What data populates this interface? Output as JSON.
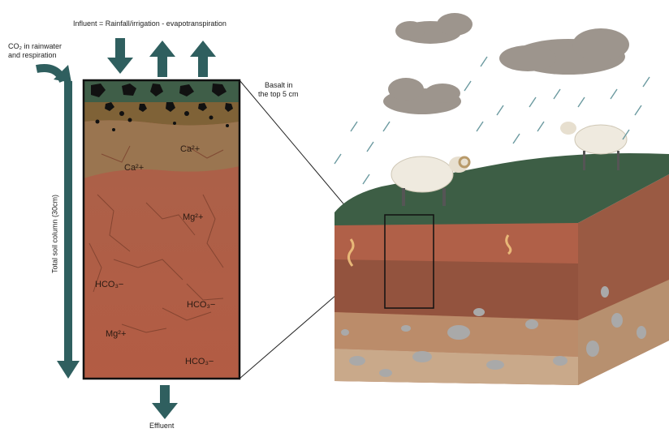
{
  "labels": {
    "influent": "Influent = Rainfall/irrigation - evapotranspiration",
    "co2_line1": "CO₂ in rainwater",
    "co2_line2": "and respiration",
    "basalt_line1": "Basalt in",
    "basalt_line2": "the top 5 cm",
    "soil_column": "Total soil column (30cm)",
    "effluent": "Effluent"
  },
  "ions": [
    {
      "id": "ca-top",
      "text": "Ca²+"
    },
    {
      "id": "ca-mid",
      "text": "Ca²+"
    },
    {
      "id": "mg-top",
      "text": "Mg²+"
    },
    {
      "id": "hco3-left",
      "text": "HCO₃−"
    },
    {
      "id": "hco3-mid",
      "text": "HCO₃−"
    },
    {
      "id": "mg-bottom",
      "text": "Mg²+"
    },
    {
      "id": "hco3-bottom",
      "text": "HCO₃−"
    }
  ],
  "colors": {
    "arrow": "#2f5f5f",
    "grass": "#3d5e45",
    "topsoil": "#8a6a40",
    "soil": "#b5614a",
    "subsoil": "#9a553f",
    "clay": "#c09272",
    "stone": "#aaaaaa",
    "cloud": "#9a9088"
  },
  "icons": [
    "down-arrow-icon",
    "up-arrow-icon",
    "curved-arrow-icon",
    "sheep-icon",
    "worm-icon",
    "cloud-icon",
    "rain-icon",
    "basalt-rock-icon"
  ]
}
